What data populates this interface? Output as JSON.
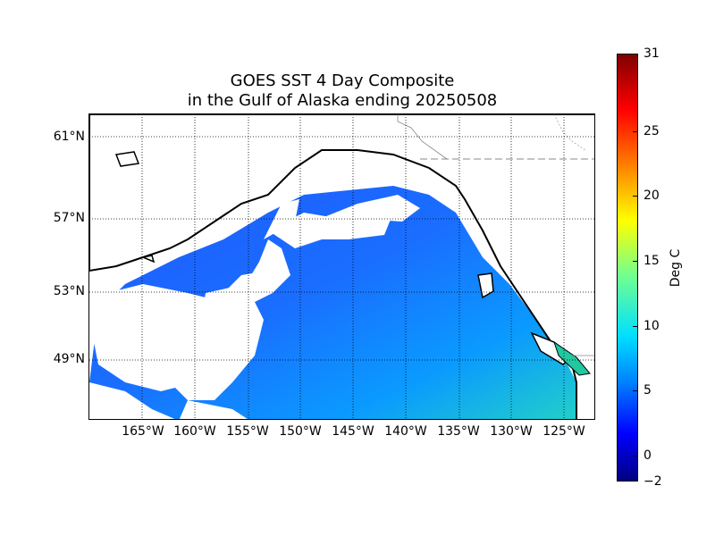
{
  "title": {
    "line1": "GOES SST 4 Day Composite",
    "line2": "in the Gulf of Alaska ending 20250508"
  },
  "map": {
    "lat_labels": [
      "61°N",
      "57°N",
      "53°N",
      "49°N"
    ],
    "lon_labels": [
      "165°W",
      "160°W",
      "155°W",
      "150°W",
      "145°W",
      "140°W",
      "135°W",
      "130°W",
      "125°W"
    ],
    "colors": {
      "cold_water": "#1e64ff",
      "mid_water": "#0a96ff",
      "warm_water": "#1ec8dc",
      "coastline": "#000000",
      "land": "#ffffff",
      "cloud_mask": "#ffffff"
    }
  },
  "colorbar": {
    "label": "Deg C",
    "ticks": [
      "31",
      "25",
      "20",
      "15",
      "10",
      "5",
      "0",
      "−2"
    ],
    "min": -2,
    "max": 31,
    "colormap": "jet"
  }
}
